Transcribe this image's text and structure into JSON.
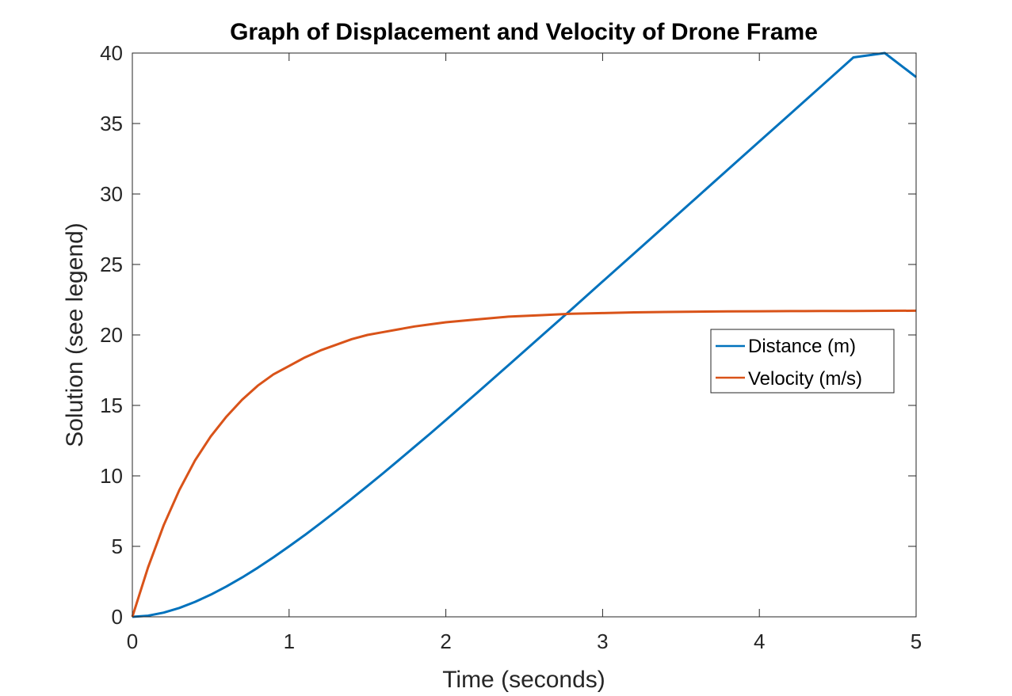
{
  "chart_data": {
    "type": "line",
    "title": "Graph of Displacement and Velocity of Drone Frame",
    "xlabel": "Time (seconds)",
    "ylabel": "Solution (see legend)",
    "xlim": [
      0,
      5
    ],
    "ylim": [
      0,
      40
    ],
    "xticks": [
      0,
      1,
      2,
      3,
      4,
      5
    ],
    "yticks": [
      0,
      5,
      10,
      15,
      20,
      25,
      30,
      35,
      40
    ],
    "grid": false,
    "legend_position": "right-center",
    "x": [
      0,
      0.1,
      0.2,
      0.3,
      0.4,
      0.5,
      0.6,
      0.7,
      0.8,
      0.9,
      1.0,
      1.1,
      1.2,
      1.3,
      1.4,
      1.5,
      1.6,
      1.7,
      1.8,
      1.9,
      2.0,
      2.2,
      2.4,
      2.6,
      2.8,
      3.0,
      3.2,
      3.4,
      3.6,
      3.8,
      4.0,
      4.2,
      4.4,
      4.6,
      4.8,
      5.0
    ],
    "series": [
      {
        "name": "Distance (m)",
        "color": "#0072BD",
        "values": [
          0,
          0.08,
          0.3,
          0.63,
          1.06,
          1.57,
          2.15,
          2.79,
          3.48,
          4.22,
          5.0,
          5.8,
          6.64,
          7.5,
          8.38,
          9.28,
          10.19,
          11.12,
          12.06,
          13.0,
          13.96,
          15.9,
          17.86,
          19.83,
          21.8,
          23.79,
          25.77,
          27.76,
          29.75,
          31.74,
          33.73,
          35.71,
          37.7,
          39.69,
          41.68,
          38.3
        ]
      },
      {
        "name": "Velocity (m/s)",
        "color": "#D95319",
        "values": [
          0,
          3.5,
          6.5,
          9.0,
          11.1,
          12.8,
          14.2,
          15.4,
          16.4,
          17.2,
          17.8,
          18.4,
          18.9,
          19.3,
          19.7,
          20.0,
          20.2,
          20.4,
          20.6,
          20.75,
          20.9,
          21.1,
          21.3,
          21.4,
          21.5,
          21.55,
          21.6,
          21.63,
          21.65,
          21.67,
          21.68,
          21.69,
          21.7,
          21.7,
          21.71,
          21.72
        ]
      }
    ]
  }
}
